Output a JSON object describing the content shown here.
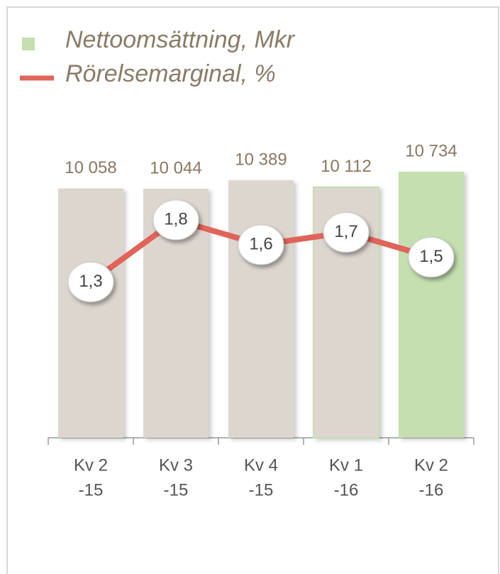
{
  "chart_data": {
    "type": "bar",
    "categories": [
      [
        "Kv 2",
        "-15"
      ],
      [
        "Kv 3",
        "-15"
      ],
      [
        "Kv 4",
        "-15"
      ],
      [
        "Kv 1",
        "-16"
      ],
      [
        "Kv 2",
        "-16"
      ]
    ],
    "series": [
      {
        "name": "Nettoomsättning, Mkr",
        "color": "#c5dfb0",
        "type": "bar",
        "colors": [
          "#ddd6cf",
          "#ddd6cf",
          "#ddd6cf",
          "#ddd6cf",
          "#c5dfb0"
        ],
        "values": [
          10058,
          10044,
          10389,
          10112,
          10734
        ],
        "value_labels": [
          "10 058",
          "10 044",
          "10 389",
          "10 112",
          "10 734"
        ]
      },
      {
        "name": "Rörelsemarginal, %",
        "color": "#e0645a",
        "type": "line",
        "values": [
          1.3,
          1.8,
          1.6,
          1.7,
          1.5
        ],
        "value_labels": [
          "1,3",
          "1,8",
          "1,6",
          "1,7",
          "1,5"
        ]
      }
    ]
  }
}
